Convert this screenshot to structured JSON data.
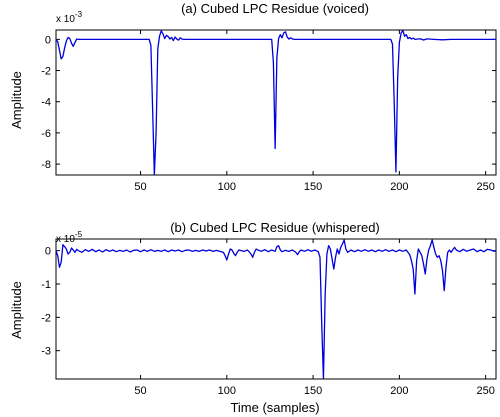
{
  "chart_data": [
    {
      "type": "line",
      "title": "(a) Cubed LPC Residue (voiced)",
      "ylabel": "Amplitude",
      "xlabel": "",
      "multiplier_label": "x 10",
      "multiplier_exp": "-3",
      "xlim": [
        1,
        256
      ],
      "ylim": [
        -8.7,
        0.6
      ],
      "xticks": [
        50,
        100,
        150,
        200,
        250
      ],
      "yticks": [
        0,
        -2,
        -4,
        -6,
        -8
      ],
      "series": [
        {
          "color": "#0000dd",
          "points": [
            [
              1,
              0
            ],
            [
              2,
              -0.15
            ],
            [
              3,
              -0.7
            ],
            [
              4,
              -1.25
            ],
            [
              5,
              -1.1
            ],
            [
              6,
              -0.55
            ],
            [
              7,
              -0.1
            ],
            [
              8,
              0.12
            ],
            [
              9,
              0.05
            ],
            [
              10,
              -0.25
            ],
            [
              11,
              -0.45
            ],
            [
              12,
              -0.2
            ],
            [
              13,
              0.02
            ],
            [
              14,
              0
            ],
            [
              20,
              0
            ],
            [
              30,
              0
            ],
            [
              40,
              0
            ],
            [
              50,
              0
            ],
            [
              55,
              0
            ],
            [
              56,
              -0.4
            ],
            [
              57,
              -4.5
            ],
            [
              58,
              -8.7
            ],
            [
              59,
              -6.0
            ],
            [
              60,
              -0.6
            ],
            [
              61,
              0.2
            ],
            [
              62,
              0.55
            ],
            [
              63,
              0.35
            ],
            [
              64,
              0.05
            ],
            [
              65,
              0.25
            ],
            [
              66,
              0.18
            ],
            [
              67,
              0.02
            ],
            [
              68,
              0.12
            ],
            [
              69,
              -0.08
            ],
            [
              70,
              0.15
            ],
            [
              71,
              0.02
            ],
            [
              72,
              -0.05
            ],
            [
              73,
              0.1
            ],
            [
              74,
              0.02
            ],
            [
              75,
              0
            ],
            [
              85,
              0
            ],
            [
              100,
              0
            ],
            [
              115,
              0
            ],
            [
              126,
              0
            ],
            [
              127,
              -1.5
            ],
            [
              128,
              -7.0
            ],
            [
              129,
              -1.2
            ],
            [
              130,
              0.05
            ],
            [
              131,
              0.3
            ],
            [
              132,
              0.1
            ],
            [
              133,
              0.42
            ],
            [
              134,
              0.48
            ],
            [
              135,
              0.15
            ],
            [
              136,
              0.02
            ],
            [
              137,
              0.1
            ],
            [
              138,
              0.03
            ],
            [
              139,
              0
            ],
            [
              150,
              0
            ],
            [
              165,
              0
            ],
            [
              180,
              0
            ],
            [
              195,
              0
            ],
            [
              196,
              -0.3
            ],
            [
              197,
              -4.0
            ],
            [
              198,
              -8.5
            ],
            [
              199,
              -2.5
            ],
            [
              200,
              -0.2
            ],
            [
              201,
              0.4
            ],
            [
              202,
              0.58
            ],
            [
              203,
              0.2
            ],
            [
              204,
              0.3
            ],
            [
              205,
              0.05
            ],
            [
              206,
              0.12
            ],
            [
              207,
              0.02
            ],
            [
              208,
              0.08
            ],
            [
              209,
              0
            ],
            [
              212,
              0.04
            ],
            [
              214,
              -0.04
            ],
            [
              216,
              0.03
            ],
            [
              220,
              0
            ],
            [
              225,
              -0.03
            ],
            [
              230,
              0
            ],
            [
              240,
              0
            ],
            [
              250,
              0
            ],
            [
              256,
              0
            ]
          ]
        }
      ]
    },
    {
      "type": "line",
      "title": "(b) Cubed LPC Residue (whispered)",
      "ylabel": "Amplitude",
      "xlabel": "Time (samples)",
      "multiplier_label": "x 10",
      "multiplier_exp": "-5",
      "xlim": [
        1,
        256
      ],
      "ylim": [
        -3.85,
        0.35
      ],
      "xticks": [
        50,
        100,
        150,
        200,
        250
      ],
      "yticks": [
        0,
        -1,
        -2,
        -3
      ],
      "series": [
        {
          "color": "#0000dd",
          "points": [
            [
              1,
              0
            ],
            [
              2,
              -0.15
            ],
            [
              3,
              -0.5
            ],
            [
              4,
              -0.35
            ],
            [
              5,
              0.18
            ],
            [
              6,
              0.12
            ],
            [
              7,
              0.05
            ],
            [
              8,
              -0.1
            ],
            [
              9,
              -0.05
            ],
            [
              10,
              0.08
            ],
            [
              11,
              0.02
            ],
            [
              12,
              -0.05
            ],
            [
              13,
              0.04
            ],
            [
              14,
              0
            ],
            [
              16,
              -0.05
            ],
            [
              18,
              0.03
            ],
            [
              20,
              -0.02
            ],
            [
              22,
              0.04
            ],
            [
              24,
              -0.03
            ],
            [
              26,
              0.02
            ],
            [
              28,
              -0.04
            ],
            [
              30,
              0.03
            ],
            [
              32,
              -0.02
            ],
            [
              34,
              0.02
            ],
            [
              36,
              -0.03
            ],
            [
              38,
              0.01
            ],
            [
              40,
              -0.02
            ],
            [
              42,
              0.02
            ],
            [
              44,
              -0.04
            ],
            [
              46,
              0.01
            ],
            [
              48,
              0.02
            ],
            [
              50,
              -0.03
            ],
            [
              52,
              0.02
            ],
            [
              54,
              -0.02
            ],
            [
              56,
              0.03
            ],
            [
              58,
              -0.02
            ],
            [
              60,
              0.01
            ],
            [
              62,
              -0.02
            ],
            [
              64,
              0.02
            ],
            [
              66,
              -0.03
            ],
            [
              68,
              0.02
            ],
            [
              70,
              -0.01
            ],
            [
              72,
              0.02
            ],
            [
              74,
              -0.03
            ],
            [
              76,
              0.01
            ],
            [
              78,
              0.02
            ],
            [
              80,
              -0.02
            ],
            [
              82,
              0.01
            ],
            [
              84,
              -0.02
            ],
            [
              86,
              0.02
            ],
            [
              88,
              -0.01
            ],
            [
              90,
              0.02
            ],
            [
              92,
              -0.02
            ],
            [
              94,
              0.01
            ],
            [
              96,
              -0.02
            ],
            [
              98,
              -0.05
            ],
            [
              99,
              -0.15
            ],
            [
              100,
              -0.28
            ],
            [
              101,
              -0.1
            ],
            [
              102,
              0.05
            ],
            [
              103,
              0.02
            ],
            [
              104,
              -0.08
            ],
            [
              105,
              -0.15
            ],
            [
              106,
              -0.05
            ],
            [
              107,
              0.02
            ],
            [
              110,
              -0.02
            ],
            [
              112,
              0.02
            ],
            [
              114,
              -0.1
            ],
            [
              115,
              -0.2
            ],
            [
              116,
              -0.05
            ],
            [
              117,
              0.05
            ],
            [
              118,
              0.02
            ],
            [
              120,
              -0.02
            ],
            [
              122,
              0.03
            ],
            [
              124,
              -0.03
            ],
            [
              126,
              0.02
            ],
            [
              128,
              -0.02
            ],
            [
              129,
              0.12
            ],
            [
              130,
              0.15
            ],
            [
              131,
              0.02
            ],
            [
              132,
              -0.03
            ],
            [
              134,
              0.01
            ],
            [
              136,
              -0.02
            ],
            [
              138,
              0.02
            ],
            [
              140,
              -0.05
            ],
            [
              141,
              -0.12
            ],
            [
              142,
              -0.03
            ],
            [
              143,
              0.02
            ],
            [
              145,
              -0.02
            ],
            [
              147,
              0.03
            ],
            [
              149,
              -0.02
            ],
            [
              151,
              0.02
            ],
            [
              153,
              -0.03
            ],
            [
              154,
              -0.2
            ],
            [
              155,
              -2.2
            ],
            [
              156,
              -3.85
            ],
            [
              157,
              -1.3
            ],
            [
              158,
              -0.1
            ],
            [
              159,
              0.15
            ],
            [
              160,
              0.05
            ],
            [
              161,
              -0.25
            ],
            [
              162,
              -0.55
            ],
            [
              163,
              -0.2
            ],
            [
              164,
              0.05
            ],
            [
              165,
              -0.1
            ],
            [
              166,
              0.1
            ],
            [
              167,
              0.2
            ],
            [
              168,
              0.32
            ],
            [
              169,
              0.05
            ],
            [
              170,
              -0.05
            ],
            [
              172,
              0.02
            ],
            [
              174,
              -0.03
            ],
            [
              176,
              0.02
            ],
            [
              178,
              -0.02
            ],
            [
              180,
              0.03
            ],
            [
              182,
              -0.02
            ],
            [
              184,
              0.02
            ],
            [
              186,
              -0.03
            ],
            [
              188,
              0.02
            ],
            [
              190,
              -0.02
            ],
            [
              192,
              0.03
            ],
            [
              194,
              -0.02
            ],
            [
              196,
              0.02
            ],
            [
              198,
              -0.03
            ],
            [
              200,
              0.02
            ],
            [
              202,
              -0.02
            ],
            [
              204,
              0.02
            ],
            [
              205,
              -0.05
            ],
            [
              206,
              -0.12
            ],
            [
              207,
              -0.3
            ],
            [
              208,
              -0.55
            ],
            [
              209,
              -1.3
            ],
            [
              210,
              -0.3
            ],
            [
              211,
              0.05
            ],
            [
              212,
              -0.05
            ],
            [
              213,
              -0.15
            ],
            [
              214,
              -0.4
            ],
            [
              215,
              -0.7
            ],
            [
              216,
              -0.25
            ],
            [
              217,
              0.02
            ],
            [
              218,
              0.15
            ],
            [
              219,
              0.32
            ],
            [
              220,
              0.1
            ],
            [
              221,
              -0.1
            ],
            [
              222,
              -0.2
            ],
            [
              223,
              -0.15
            ],
            [
              224,
              -0.3
            ],
            [
              225,
              -0.6
            ],
            [
              226,
              -1.2
            ],
            [
              227,
              -0.5
            ],
            [
              228,
              -0.05
            ],
            [
              229,
              0.02
            ],
            [
              230,
              -0.05
            ],
            [
              231,
              0.03
            ],
            [
              232,
              0.1
            ],
            [
              233,
              0.02
            ],
            [
              235,
              -0.03
            ],
            [
              237,
              0.04
            ],
            [
              239,
              -0.02
            ],
            [
              241,
              0.02
            ],
            [
              243,
              0.05
            ],
            [
              245,
              -0.03
            ],
            [
              247,
              0.02
            ],
            [
              249,
              -0.03
            ],
            [
              251,
              0.04
            ],
            [
              253,
              0.02
            ],
            [
              255,
              -0.02
            ],
            [
              256,
              0
            ]
          ]
        }
      ]
    }
  ]
}
